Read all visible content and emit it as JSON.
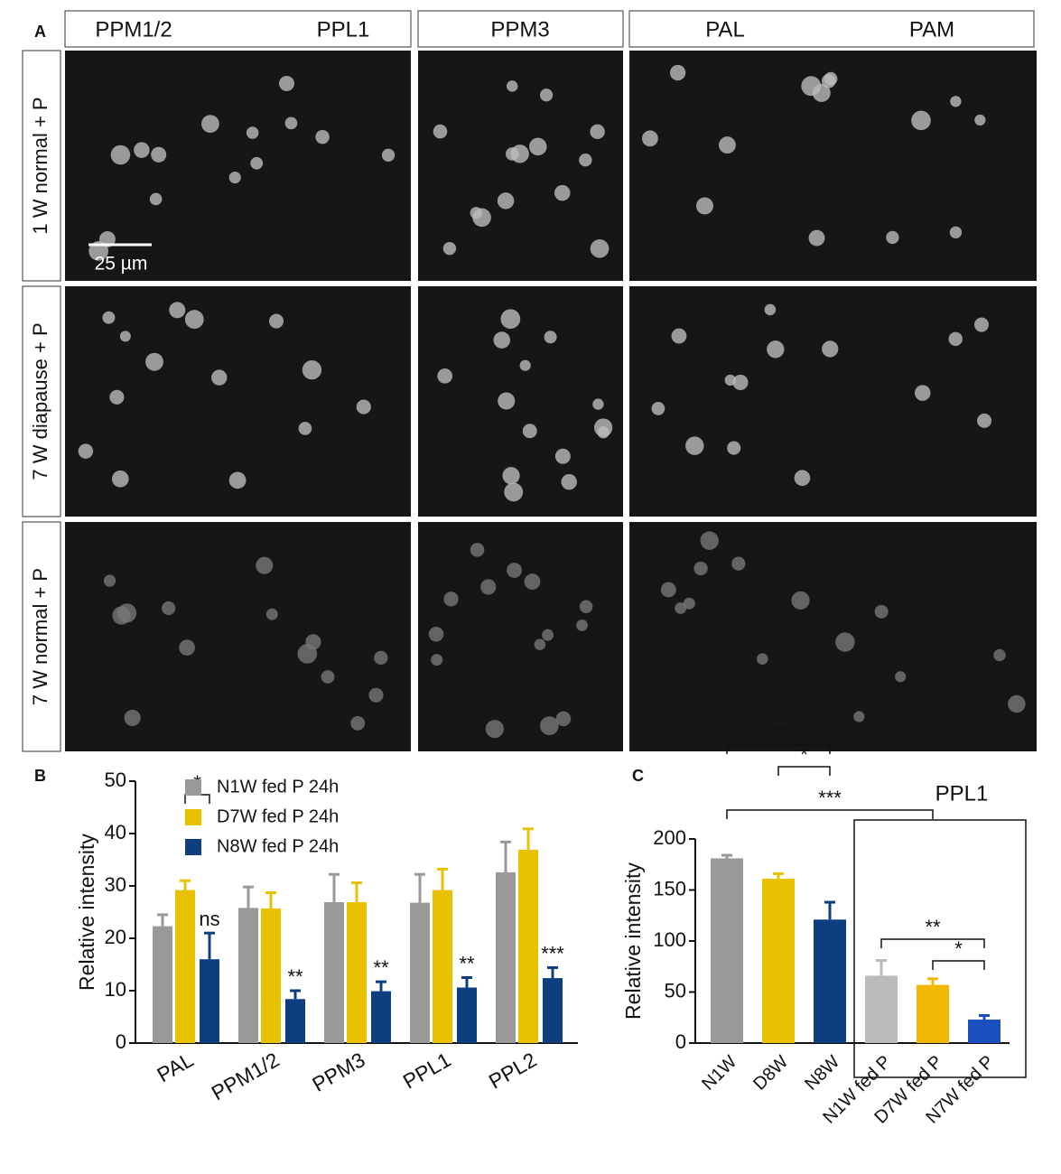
{
  "panel_a": {
    "label": "A",
    "column_headers": [
      "PPM1/2",
      "PPL1",
      "PPM3",
      "PAL",
      "PAM"
    ],
    "row_labels": [
      "1 W normal + P",
      "7 W diapause + P",
      "7 W normal + P"
    ],
    "scale_bar": "25 µm"
  },
  "chart_data": [
    {
      "type": "bar",
      "label": "B",
      "y_label": "Relative intensity",
      "categories": [
        "PAL",
        "PPM1/2",
        "PPM3",
        "PPL1",
        "PPL2"
      ],
      "series": [
        {
          "name": "N1W fed P 24h",
          "color": "#999999",
          "values": [
            22.3,
            25.8,
            26.9,
            26.8,
            32.6
          ],
          "errors": [
            2.2,
            4,
            5.3,
            5.4,
            5.8
          ]
        },
        {
          "name": "D7W fed P 24h",
          "color": "#e8c200",
          "values": [
            29.2,
            25.7,
            26.9,
            29.2,
            36.9
          ],
          "errors": [
            1.8,
            3,
            3.7,
            4,
            4
          ]
        },
        {
          "name": "N8W fed P 24h",
          "color": "#0d3f80",
          "values": [
            16.0,
            8.4,
            9.9,
            10.6,
            12.4
          ],
          "errors": [
            5,
            1.6,
            1.8,
            1.9,
            2
          ],
          "significance": [
            "ns",
            "**",
            "**",
            "**",
            "***"
          ]
        }
      ],
      "brackets": [
        {
          "text": "*"
        }
      ],
      "ylim": [
        0,
        50
      ],
      "yticks": [
        0,
        10,
        20,
        30,
        40,
        50
      ]
    },
    {
      "type": "bar",
      "label": "C",
      "title": "PPL1",
      "y_label": "Relative intensity",
      "categories": [
        "N1W",
        "D8W",
        "N8W",
        "N1W fed P",
        "D7W fed P",
        "N7W fed P"
      ],
      "values": [
        181,
        161,
        121,
        66,
        57,
        23
      ],
      "errors": [
        3,
        5,
        17,
        15,
        6,
        4
      ],
      "colors": [
        "#999999",
        "#e8c200",
        "#0d3f80",
        "#bbbbbb",
        "#f0b800",
        "#1a4fbf"
      ],
      "brackets": [
        {
          "text": "***"
        },
        {
          "text": "**"
        },
        {
          "text": "*"
        },
        {
          "text": "**"
        },
        {
          "text": "*"
        }
      ],
      "ylim": [
        0,
        200
      ],
      "yticks": [
        0,
        50,
        100,
        150,
        200
      ]
    }
  ]
}
